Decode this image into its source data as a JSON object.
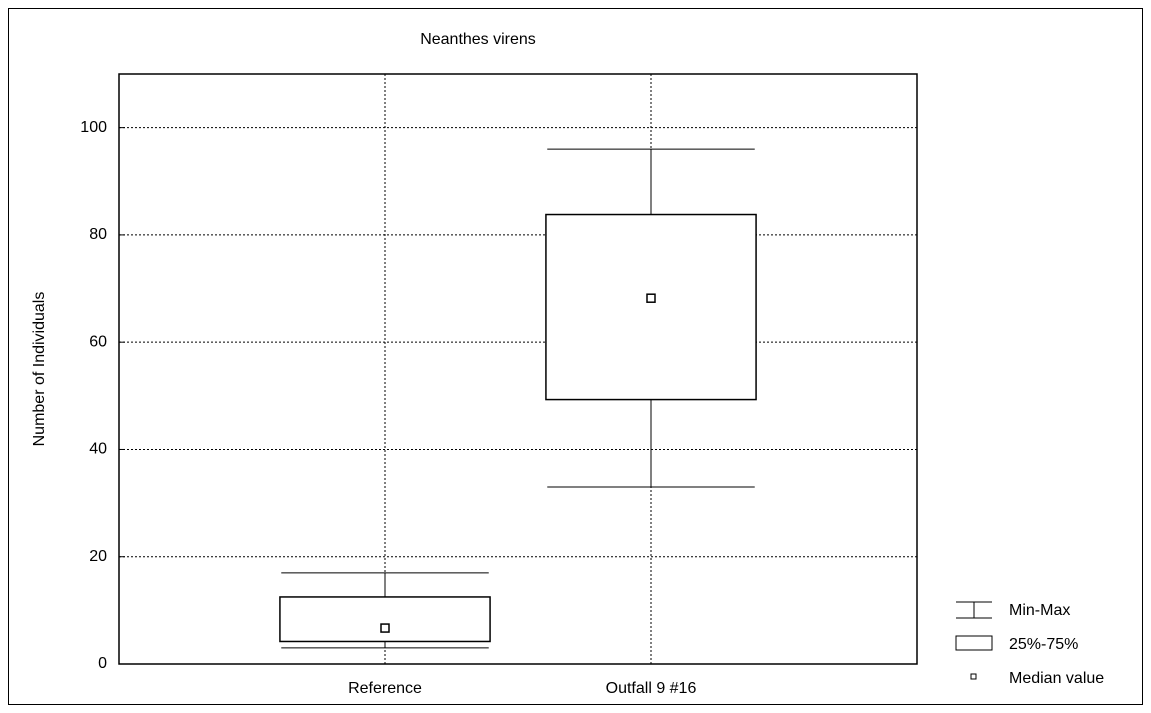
{
  "chart_data": {
    "type": "box",
    "title": "Neanthes virens",
    "y_label": "Number of Individuals",
    "categories": [
      "Reference",
      "Outfall 9 #16"
    ],
    "min": [
      3,
      33
    ],
    "q1": [
      4.2,
      49.3
    ],
    "median": [
      6.7,
      68.2
    ],
    "q3": [
      12.5,
      83.8
    ],
    "max": [
      17,
      96
    ],
    "ylim": [
      0,
      110
    ],
    "yticks": [
      0,
      20,
      40,
      60,
      80,
      100
    ],
    "grid": true,
    "color": "#000000",
    "legend": [
      "Min-Max",
      "25%-75%",
      "Median value"
    ]
  }
}
